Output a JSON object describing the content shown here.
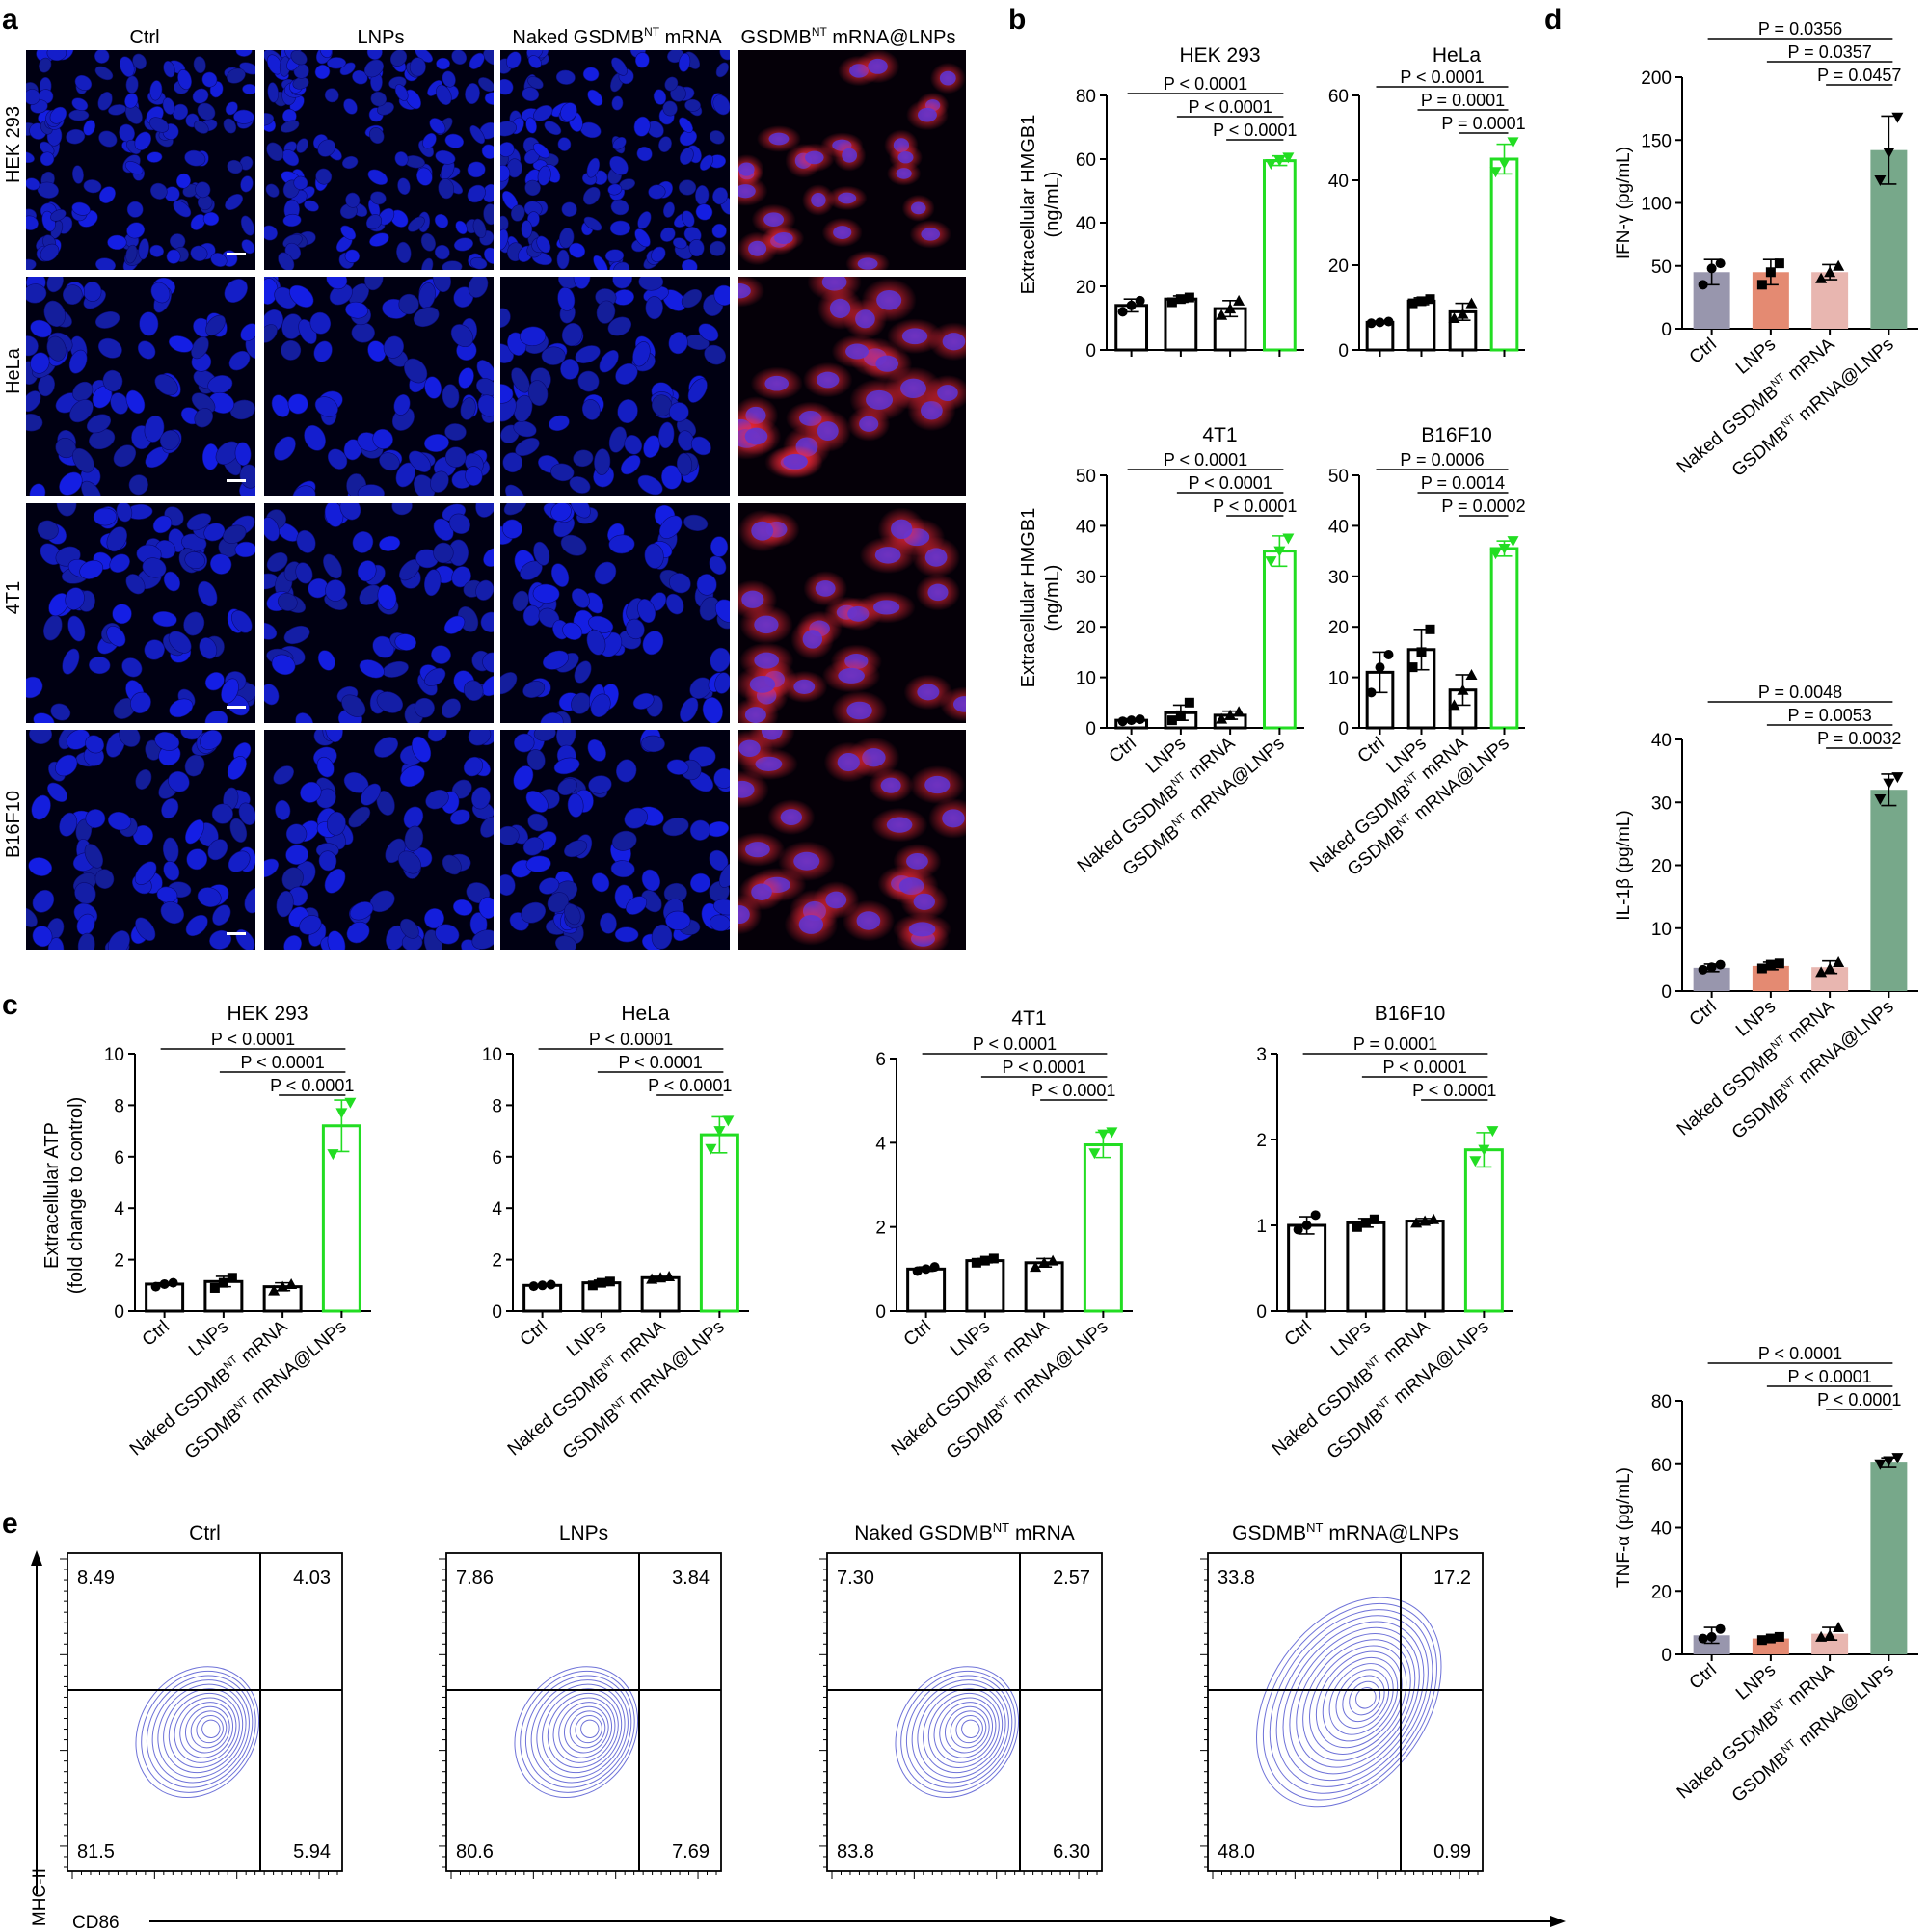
{
  "panel_letters": {
    "a": "a",
    "b": "b",
    "c": "c",
    "d": "d",
    "e": "e"
  },
  "micro": {
    "columns": [
      "Ctrl",
      "LNPs",
      "Naked GSDMB",
      "GSDMB"
    ],
    "columns_suffix": [
      " mRNA",
      " mRNA@LNPs"
    ],
    "superscript": "NT",
    "rows": [
      "HEK 293",
      "HeLa",
      "4T1",
      "B16F10"
    ]
  },
  "groups": {
    "g1": "Ctrl",
    "g2": "LNPs",
    "g3_pre": "Naked GSDMB",
    "g3_post": " mRNA",
    "g4_pre": "GSDMB",
    "g4_post": " mRNA@LNPs",
    "sup": "NT"
  },
  "panel_b": {
    "ylabel_1": "Extracellular HMGB1",
    "ylabel_2": "(ng/mL)",
    "colors": {
      "ctrl": "#000000",
      "treated": "#22dd22"
    }
  },
  "panel_c": {
    "ylabel_1": "Extracellular ATP",
    "ylabel_2": "(fold change to control)"
  },
  "panel_d": {
    "colors": [
      "#9896ad",
      "#e48a72",
      "#e8b6b0",
      "#77a88a"
    ]
  },
  "panel_e": {
    "ylabel": "MHC-II",
    "xlabel": "CD86",
    "contour_color": "#6e72d8"
  },
  "chart_data": [
    {
      "id": "b-hek293",
      "type": "bar",
      "title": "HEK 293",
      "ylabel": "Extracellular HMGB1 (ng/mL)",
      "categories": [
        "Ctrl",
        "LNPs",
        "Naked GSDMBNT mRNA",
        "GSDMBNT mRNA@LNPs"
      ],
      "values": [
        14,
        16,
        13,
        59.5
      ],
      "errors": [
        2,
        1,
        2.5,
        1.5
      ],
      "points": [
        [
          12,
          14,
          15.5
        ],
        [
          15,
          16,
          16.5
        ],
        [
          11,
          13,
          15.5
        ],
        [
          58.5,
          59.5,
          60.5
        ]
      ],
      "ylim": [
        0,
        80
      ],
      "ticks": [
        0,
        20,
        40,
        60,
        80
      ],
      "pvalues": [
        "P < 0.0001",
        "P < 0.0001",
        "P < 0.0001"
      ]
    },
    {
      "id": "b-hela",
      "type": "bar",
      "title": "HeLa",
      "ylabel": "Extracellular HMGB1 (ng/mL)",
      "categories": [
        "Ctrl",
        "LNPs",
        "Naked GSDMBNT mRNA",
        "GSDMBNT mRNA@LNPs"
      ],
      "values": [
        6.5,
        11.5,
        9,
        45
      ],
      "errors": [
        0.3,
        0.8,
        2,
        3.5
      ],
      "points": [
        [
          6.3,
          6.5,
          6.7
        ],
        [
          11,
          11.5,
          12
        ],
        [
          7.5,
          8.5,
          11
        ],
        [
          42,
          44,
          49
        ]
      ],
      "ylim": [
        0,
        60
      ],
      "ticks": [
        0,
        20,
        40,
        60
      ],
      "pvalues": [
        "P < 0.0001",
        "P = 0.0001",
        "P = 0.0001"
      ]
    },
    {
      "id": "b-4t1",
      "type": "bar",
      "title": "4T1",
      "ylabel": "Extracellular HMGB1 (ng/mL)",
      "categories": [
        "Ctrl",
        "LNPs",
        "Naked GSDMBNT mRNA",
        "GSDMBNT mRNA@LNPs"
      ],
      "values": [
        1.5,
        3,
        2.5,
        35
      ],
      "errors": [
        0.3,
        1.5,
        0.8,
        3
      ],
      "points": [
        [
          1.3,
          1.5,
          1.7
        ],
        [
          1.5,
          2.5,
          5
        ],
        [
          1.8,
          2.5,
          3.2
        ],
        [
          33,
          35,
          37.5
        ]
      ],
      "ylim": [
        0,
        50
      ],
      "ticks": [
        0,
        10,
        20,
        30,
        40,
        50
      ],
      "pvalues": [
        "P < 0.0001",
        "P < 0.0001",
        "P < 0.0001"
      ]
    },
    {
      "id": "b-b16f10",
      "type": "bar",
      "title": "B16F10",
      "ylabel": "Extracellular HMGB1 (ng/mL)",
      "categories": [
        "Ctrl",
        "LNPs",
        "Naked GSDMBNT mRNA",
        "GSDMBNT mRNA@LNPs"
      ],
      "values": [
        11,
        15.5,
        7.5,
        35.5
      ],
      "errors": [
        4,
        4,
        3,
        1.5
      ],
      "points": [
        [
          7,
          12,
          14.5
        ],
        [
          12,
          15,
          19.5
        ],
        [
          4.5,
          7.5,
          10.5
        ],
        [
          34.5,
          35.5,
          37
        ]
      ],
      "ylim": [
        0,
        50
      ],
      "ticks": [
        0,
        10,
        20,
        30,
        40,
        50
      ],
      "pvalues": [
        "P = 0.0006",
        "P = 0.0014",
        "P = 0.0002"
      ]
    },
    {
      "id": "c-hek293",
      "type": "bar",
      "title": "HEK 293",
      "ylabel": "Extracellular ATP (fold change to control)",
      "categories": [
        "Ctrl",
        "LNPs",
        "Naked GSDMBNT mRNA",
        "GSDMBNT mRNA@LNPs"
      ],
      "values": [
        1.05,
        1.15,
        0.95,
        7.2
      ],
      "errors": [
        0.05,
        0.2,
        0.15,
        1
      ],
      "points": [
        [
          0.95,
          1.05,
          1.1
        ],
        [
          0.9,
          1.1,
          1.3
        ],
        [
          0.8,
          0.95,
          1.05
        ],
        [
          6.1,
          7.7,
          8.1
        ]
      ],
      "ylim": [
        0,
        10
      ],
      "ticks": [
        0,
        2,
        4,
        6,
        8,
        10
      ],
      "pvalues": [
        "P < 0.0001",
        "P < 0.0001",
        "P < 0.0001"
      ]
    },
    {
      "id": "c-hela",
      "type": "bar",
      "title": "HeLa",
      "ylabel": "Extracellular ATP (fold change to control)",
      "categories": [
        "Ctrl",
        "LNPs",
        "Naked GSDMBNT mRNA",
        "GSDMBNT mRNA@LNPs"
      ],
      "values": [
        1.0,
        1.1,
        1.3,
        6.85
      ],
      "errors": [
        0.03,
        0.1,
        0.05,
        0.7
      ],
      "points": [
        [
          0.97,
          1.0,
          1.03
        ],
        [
          1.0,
          1.1,
          1.15
        ],
        [
          1.25,
          1.3,
          1.35
        ],
        [
          6.3,
          7.0,
          7.4
        ]
      ],
      "ylim": [
        0,
        10
      ],
      "ticks": [
        0,
        2,
        4,
        6,
        8,
        10
      ],
      "pvalues": [
        "P < 0.0001",
        "P < 0.0001",
        "P < 0.0001"
      ]
    },
    {
      "id": "c-4t1",
      "type": "bar",
      "title": "4T1",
      "ylabel": "Extracellular ATP (fold change to control)",
      "categories": [
        "Ctrl",
        "LNPs",
        "Naked GSDMBNT mRNA",
        "GSDMBNT mRNA@LNPs"
      ],
      "values": [
        1.0,
        1.2,
        1.15,
        3.95
      ],
      "errors": [
        0.05,
        0.05,
        0.1,
        0.3
      ],
      "points": [
        [
          0.95,
          1.0,
          1.05
        ],
        [
          1.15,
          1.2,
          1.25
        ],
        [
          1.05,
          1.15,
          1.2
        ],
        [
          3.75,
          4.2,
          4.25
        ]
      ],
      "ylim": [
        0,
        6
      ],
      "ticks": [
        0,
        2,
        4,
        6
      ],
      "pvalues": [
        "P < 0.0001",
        "P < 0.0001",
        "P < 0.0001"
      ]
    },
    {
      "id": "c-b16f10",
      "type": "bar",
      "title": "B16F10",
      "ylabel": "Extracellular ATP (fold change to control)",
      "categories": [
        "Ctrl",
        "LNPs",
        "Naked GSDMBNT mRNA",
        "GSDMBNT mRNA@LNPs"
      ],
      "values": [
        1.0,
        1.03,
        1.05,
        1.88
      ],
      "errors": [
        0.1,
        0.05,
        0.03,
        0.2
      ],
      "points": [
        [
          0.95,
          1.0,
          1.12
        ],
        [
          0.98,
          1.03,
          1.07
        ],
        [
          1.03,
          1.05,
          1.07
        ],
        [
          1.75,
          1.88,
          2.1
        ]
      ],
      "ylim": [
        0,
        3
      ],
      "ticks": [
        0,
        1,
        2,
        3
      ],
      "pvalues": [
        "P = 0.0001",
        "P < 0.0001",
        "P < 0.0001"
      ]
    },
    {
      "id": "d-ifng",
      "type": "bar",
      "title": "",
      "ylabel": "IFN-γ (pg/mL)",
      "categories": [
        "Ctrl",
        "LNPs",
        "Naked GSDMBNT mRNA",
        "GSDMBNT mRNA@LNPs"
      ],
      "values": [
        45,
        45,
        45,
        142
      ],
      "errors": [
        10,
        10,
        6,
        27
      ],
      "points": [
        [
          35,
          48,
          52
        ],
        [
          35,
          45,
          52
        ],
        [
          40,
          45,
          50
        ],
        [
          118,
          140,
          168
        ]
      ],
      "ylim": [
        0,
        200
      ],
      "ticks": [
        0,
        50,
        100,
        150,
        200
      ],
      "pvalues": [
        "P = 0.0356",
        "P = 0.0357",
        "P = 0.0457"
      ]
    },
    {
      "id": "d-il1b",
      "type": "bar",
      "title": "",
      "ylabel": "IL-1β (pg/mL)",
      "categories": [
        "Ctrl",
        "LNPs",
        "Naked GSDMBNT mRNA",
        "GSDMBNT mRNA@LNPs"
      ],
      "values": [
        3.7,
        4.0,
        3.8,
        32
      ],
      "errors": [
        0.6,
        0.6,
        1,
        2.5
      ],
      "points": [
        [
          3.4,
          3.8,
          4.2
        ],
        [
          3.6,
          4.2,
          4.4
        ],
        [
          3.0,
          3.6,
          4.6
        ],
        [
          30.5,
          33,
          34
        ]
      ],
      "ylim": [
        0,
        40
      ],
      "ticks": [
        0,
        10,
        20,
        30,
        40
      ],
      "pvalues": [
        "P = 0.0048",
        "P = 0.0053",
        "P = 0.0032"
      ]
    },
    {
      "id": "d-tnfa",
      "type": "bar",
      "title": "",
      "ylabel": "TNF-α (pg/mL)",
      "categories": [
        "Ctrl",
        "LNPs",
        "Naked GSDMBNT mRNA",
        "GSDMBNT mRNA@LNPs"
      ],
      "values": [
        6,
        5,
        6.5,
        60.5
      ],
      "errors": [
        2.5,
        0.6,
        2,
        1.5
      ],
      "points": [
        [
          5,
          5.5,
          8
        ],
        [
          4.5,
          5,
          5.5
        ],
        [
          5.5,
          6,
          8.5
        ],
        [
          60,
          61,
          62
        ]
      ],
      "ylim": [
        0,
        80
      ],
      "ticks": [
        0,
        20,
        40,
        60,
        80
      ],
      "pvalues": [
        "P < 0.0001",
        "P < 0.0001",
        "P < 0.0001"
      ]
    }
  ],
  "flow": [
    {
      "title_pre": "Ctrl",
      "title_sup": "",
      "title_post": "",
      "ul": "8.49",
      "ur": "4.03",
      "ll": "81.5",
      "lr": "5.94"
    },
    {
      "title_pre": "LNPs",
      "title_sup": "",
      "title_post": "",
      "ul": "7.86",
      "ur": "3.84",
      "ll": "80.6",
      "lr": "7.69"
    },
    {
      "title_pre": "Naked GSDMB",
      "title_sup": "NT",
      "title_post": " mRNA",
      "ul": "7.30",
      "ur": "2.57",
      "ll": "83.8",
      "lr": "6.30"
    },
    {
      "title_pre": "GSDMB",
      "title_sup": "NT",
      "title_post": " mRNA@LNPs",
      "ul": "33.8",
      "ur": "17.2",
      "ll": "48.0",
      "lr": "0.99"
    }
  ]
}
